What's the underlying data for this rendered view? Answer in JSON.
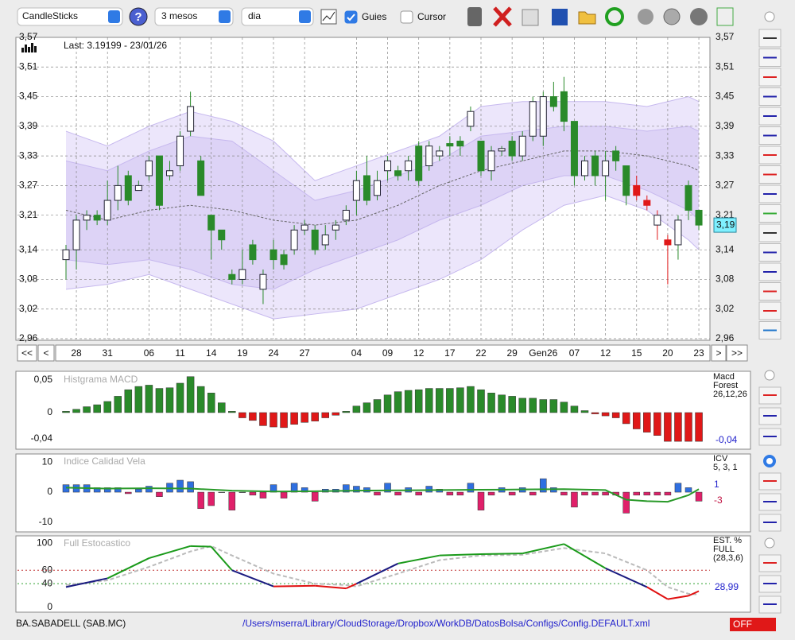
{
  "toolbar": {
    "chart_type": "CandleSticks",
    "help": "?",
    "period": "3 mesos",
    "interval": "dia",
    "guides_label": "Guies",
    "guides_checked": true,
    "cursor_label": "Cursor",
    "cursor_checked": false
  },
  "main_chart": {
    "type": "candlestick",
    "last_text": "Last: 3.19199 - 23/01/26",
    "last_label": "3,19",
    "ylim": [
      2.96,
      3.57
    ],
    "yticks": [
      {
        "value": 2.96,
        "label": "2,96"
      },
      {
        "value": 3.02,
        "label": "3,02"
      },
      {
        "value": 3.08,
        "label": "3,08"
      },
      {
        "value": 3.14,
        "label": "3,14"
      },
      {
        "value": 3.21,
        "label": "3,21"
      },
      {
        "value": 3.27,
        "label": "3,27"
      },
      {
        "value": 3.33,
        "label": "3,33"
      },
      {
        "value": 3.39,
        "label": "3,39"
      },
      {
        "value": 3.45,
        "label": "3,45"
      },
      {
        "value": 3.51,
        "label": "3,51"
      },
      {
        "value": 3.57,
        "label": "3,57"
      }
    ],
    "x_labels": [
      "28",
      "31",
      "06",
      "11",
      "14",
      "19",
      "24",
      "27",
      "04",
      "09",
      "12",
      "17",
      "22",
      "29",
      "Gen26",
      "07",
      "12",
      "15",
      "20",
      "23"
    ],
    "x_label_index": [
      1,
      4,
      8,
      11,
      14,
      17,
      20,
      23,
      28,
      31,
      34,
      37,
      40,
      43,
      46,
      49,
      52,
      55,
      58,
      61
    ],
    "nav": [
      "<<",
      "<",
      ">",
      ">>"
    ],
    "grid": true,
    "up_fill": "#ffffff",
    "candles": [
      [
        3.12,
        3.15,
        3.08,
        3.14
      ],
      [
        3.14,
        3.21,
        3.1,
        3.2
      ],
      [
        3.2,
        3.22,
        3.18,
        3.21
      ],
      [
        3.21,
        3.22,
        3.19,
        3.2
      ],
      [
        3.2,
        3.28,
        3.19,
        3.24
      ],
      [
        3.24,
        3.31,
        3.22,
        3.27
      ],
      [
        3.29,
        3.3,
        3.23,
        3.24
      ],
      [
        3.26,
        3.28,
        3.26,
        3.27
      ],
      [
        3.29,
        3.33,
        3.28,
        3.32
      ],
      [
        3.33,
        3.33,
        3.22,
        3.23
      ],
      [
        3.29,
        3.32,
        3.28,
        3.3
      ],
      [
        3.31,
        3.38,
        3.3,
        3.37
      ],
      [
        3.38,
        3.46,
        3.37,
        3.43
      ],
      [
        3.32,
        3.33,
        3.25,
        3.25
      ],
      [
        3.21,
        3.21,
        3.12,
        3.18
      ],
      [
        3.18,
        3.18,
        3.14,
        3.16
      ],
      [
        3.09,
        3.1,
        3.07,
        3.08
      ],
      [
        3.08,
        3.14,
        3.07,
        3.1
      ],
      [
        3.15,
        3.16,
        3.11,
        3.12
      ],
      [
        3.06,
        3.1,
        3.03,
        3.09
      ],
      [
        3.14,
        3.16,
        3.1,
        3.12
      ],
      [
        3.13,
        3.14,
        3.1,
        3.11
      ],
      [
        3.14,
        3.19,
        3.13,
        3.18
      ],
      [
        3.18,
        3.2,
        3.17,
        3.19
      ],
      [
        3.18,
        3.19,
        3.13,
        3.14
      ],
      [
        3.15,
        3.19,
        3.14,
        3.17
      ],
      [
        3.18,
        3.2,
        3.16,
        3.19
      ],
      [
        3.2,
        3.23,
        3.19,
        3.22
      ],
      [
        3.24,
        3.3,
        3.21,
        3.28
      ],
      [
        3.29,
        3.33,
        3.23,
        3.24
      ],
      [
        3.25,
        3.3,
        3.24,
        3.28
      ],
      [
        3.3,
        3.33,
        3.28,
        3.32
      ],
      [
        3.3,
        3.31,
        3.28,
        3.29
      ],
      [
        3.3,
        3.33,
        3.28,
        3.32
      ],
      [
        3.35,
        3.36,
        3.27,
        3.28
      ],
      [
        3.31,
        3.36,
        3.3,
        3.35
      ],
      [
        3.33,
        3.35,
        3.32,
        3.34
      ],
      [
        3.355,
        3.37,
        3.33,
        3.35
      ],
      [
        3.36,
        3.37,
        3.33,
        3.35
      ],
      [
        3.39,
        3.43,
        3.38,
        3.42
      ],
      [
        3.36,
        3.36,
        3.29,
        3.3
      ],
      [
        3.3,
        3.35,
        3.28,
        3.34
      ],
      [
        3.34,
        3.35,
        3.33,
        3.345
      ],
      [
        3.36,
        3.37,
        3.32,
        3.33
      ],
      [
        3.33,
        3.38,
        3.32,
        3.37
      ],
      [
        3.37,
        3.45,
        3.36,
        3.44
      ],
      [
        3.37,
        3.46,
        3.35,
        3.45
      ],
      [
        3.45,
        3.48,
        3.42,
        3.43
      ],
      [
        3.46,
        3.49,
        3.38,
        3.4
      ],
      [
        3.4,
        3.4,
        3.27,
        3.29
      ],
      [
        3.29,
        3.33,
        3.28,
        3.32
      ],
      [
        3.33,
        3.34,
        3.27,
        3.29
      ],
      [
        3.29,
        3.34,
        3.24,
        3.32
      ],
      [
        3.34,
        3.35,
        3.3,
        3.32
      ],
      [
        3.31,
        3.31,
        3.23,
        3.25
      ],
      [
        3.27,
        3.29,
        3.24,
        3.25
      ],
      [
        3.24,
        3.25,
        3.22,
        3.23
      ],
      [
        3.19,
        3.22,
        3.16,
        3.21
      ],
      [
        3.16,
        3.17,
        3.07,
        3.15
      ],
      [
        3.15,
        3.21,
        3.12,
        3.2
      ],
      [
        3.27,
        3.28,
        3.2,
        3.22
      ],
      [
        3.22,
        3.22,
        3.18,
        3.19
      ]
    ],
    "candle_colors": [
      "#2a8a2a",
      "#2a8a2a",
      "#2a8a2a",
      "#2a8a2a",
      "#2a8a2a",
      "#2a8a2a",
      "#2a8a2a",
      "#2a8a2a",
      "#2a8a2a",
      "#2a8a2a",
      "#2a8a2a",
      "#2a8a2a",
      "#2a8a2a",
      "#2a8a2a",
      "#2a8a2a",
      "#2a8a2a",
      "#2a8a2a",
      "#2a8a2a",
      "#2a8a2a",
      "#2a8a2a",
      "#2a8a2a",
      "#2a8a2a",
      "#2a8a2a",
      "#2a8a2a",
      "#2a8a2a",
      "#2a8a2a",
      "#2a8a2a",
      "#2a8a2a",
      "#2a8a2a",
      "#2a8a2a",
      "#2a8a2a",
      "#2a8a2a",
      "#2a8a2a",
      "#2a8a2a",
      "#2a8a2a",
      "#2a8a2a",
      "#2a8a2a",
      "#2a8a2a",
      "#2a8a2a",
      "#2a8a2a",
      "#2a8a2a",
      "#2a8a2a",
      "#2a8a2a",
      "#2a8a2a",
      "#2a8a2a",
      "#2a8a2a",
      "#2a8a2a",
      "#2a8a2a",
      "#2a8a2a",
      "#2a8a2a",
      "#2a8a2a",
      "#2a8a2a",
      "#2a8a2a",
      "#2a8a2a",
      "#2a8a2a",
      "#e01818",
      "#e01818",
      "#e01818",
      "#e01818",
      "#2a8a2a",
      "#2a8a2a",
      "#2a8a2a"
    ],
    "bands": {
      "x": [
        0,
        4,
        8,
        12,
        16,
        20,
        24,
        28,
        32,
        36,
        40,
        44,
        48,
        52,
        56,
        60,
        61
      ],
      "upper": [
        3.38,
        3.35,
        3.39,
        3.42,
        3.4,
        3.36,
        3.28,
        3.31,
        3.34,
        3.37,
        3.43,
        3.44,
        3.44,
        3.44,
        3.43,
        3.45,
        3.44
      ],
      "inner_upper": [
        3.32,
        3.3,
        3.34,
        3.37,
        3.36,
        3.3,
        3.24,
        3.26,
        3.29,
        3.32,
        3.37,
        3.38,
        3.39,
        3.39,
        3.38,
        3.39,
        3.38
      ],
      "mid": [
        3.22,
        3.2,
        3.22,
        3.23,
        3.22,
        3.2,
        3.19,
        3.2,
        3.23,
        3.27,
        3.3,
        3.32,
        3.34,
        3.34,
        3.33,
        3.31,
        3.3
      ],
      "inner_lower": [
        3.12,
        3.11,
        3.12,
        3.1,
        3.07,
        3.06,
        3.1,
        3.13,
        3.16,
        3.2,
        3.23,
        3.27,
        3.29,
        3.29,
        3.26,
        3.22,
        3.2
      ],
      "lower": [
        3.06,
        3.07,
        3.09,
        3.06,
        3.03,
        3.0,
        3.01,
        3.02,
        3.05,
        3.08,
        3.12,
        3.18,
        3.23,
        3.25,
        3.22,
        3.16,
        3.14
      ]
    }
  },
  "macd": {
    "type": "bar",
    "title": "Histgrama MACD",
    "labels": [
      "Macd",
      "Forest",
      "26,12,26"
    ],
    "last_label": "-0,04",
    "ylim": [
      -0.056,
      0.062
    ],
    "yticks": [
      {
        "value": 0.05,
        "label": "0,05"
      },
      0,
      {
        "value": -0.04,
        "label": "-0,04"
      }
    ],
    "colors": {
      "positive": "#2a8a2a",
      "negative": "#e01818"
    },
    "values": [
      0.002,
      0.005,
      0.009,
      0.012,
      0.017,
      0.025,
      0.035,
      0.04,
      0.042,
      0.037,
      0.038,
      0.045,
      0.055,
      0.04,
      0.03,
      0.015,
      0.002,
      -0.008,
      -0.012,
      -0.02,
      -0.022,
      -0.023,
      -0.018,
      -0.015,
      -0.013,
      -0.008,
      -0.004,
      0.002,
      0.01,
      0.015,
      0.02,
      0.027,
      0.032,
      0.034,
      0.035,
      0.037,
      0.037,
      0.037,
      0.038,
      0.04,
      0.035,
      0.03,
      0.027,
      0.025,
      0.022,
      0.022,
      0.02,
      0.02,
      0.016,
      0.01,
      0.003,
      -0.002,
      -0.005,
      -0.008,
      -0.017,
      -0.025,
      -0.03,
      -0.035,
      -0.044,
      -0.044,
      -0.044,
      -0.044
    ]
  },
  "icv": {
    "type": "bar",
    "title": "Indice Calidad Vela",
    "labels": [
      "ICV",
      "5, 3, 1"
    ],
    "last_labels": [
      "1",
      "-3"
    ],
    "ylim": [
      -13,
      12.5
    ],
    "yticks": [
      10,
      0,
      -10
    ],
    "colors": {
      "positive": "#2f6fe0",
      "negative": "#e0206a"
    },
    "values": [
      2.5,
      2.5,
      2.5,
      1.5,
      1.5,
      1.5,
      -0.5,
      1,
      2,
      -1.5,
      3,
      4,
      3.5,
      -5.5,
      -4.5,
      0,
      -6,
      0,
      -1,
      -2,
      2.5,
      -2,
      3,
      1.5,
      -3,
      1,
      1,
      2.5,
      2,
      1.5,
      -1,
      3,
      -1,
      1.5,
      -1,
      2,
      1,
      -1,
      -1,
      3,
      -6,
      -1,
      1.5,
      -1,
      1.5,
      -1,
      4.5,
      1.5,
      -1,
      -5,
      -1,
      -1,
      -1,
      -1,
      -7,
      -1,
      -1,
      -1,
      -1,
      3,
      1.5,
      -3
    ],
    "signal": {
      "color": "#2a9a2a",
      "x": [
        0,
        4,
        8,
        12,
        16,
        20,
        24,
        28,
        32,
        36,
        40,
        44,
        48,
        52,
        54,
        56,
        58,
        60,
        61
      ],
      "values": [
        1.5,
        1.2,
        1.3,
        1.2,
        0.5,
        0.2,
        0.3,
        0.5,
        0.6,
        0.7,
        0.8,
        0.9,
        1.0,
        0.7,
        -2.5,
        -3,
        -3.2,
        -1,
        1
      ]
    }
  },
  "stochastic": {
    "type": "line",
    "title": "Full Estocastico",
    "labels": [
      "EST. %",
      "FULL",
      "(28,3,6)"
    ],
    "last_label": "28,99",
    "ylim": [
      0,
      110
    ],
    "yticks": [
      100,
      60,
      40,
      0
    ],
    "levels": [
      60,
      40
    ],
    "level_colors": [
      "#c03030",
      "#30a030"
    ],
    "k_colors": {
      "above": "#1a9a1a",
      "middle": "#1a1a80",
      "below": "#e01010"
    },
    "k": {
      "x": [
        0,
        4,
        8,
        12,
        14,
        16,
        20,
        24,
        27,
        28,
        32,
        36,
        40,
        44,
        48,
        52,
        56,
        58,
        60,
        61
      ],
      "values": [
        35,
        48,
        78,
        96,
        95,
        60,
        36,
        37,
        33,
        40,
        70,
        82,
        84,
        85,
        99,
        63,
        35,
        17,
        22,
        28.99
      ]
    },
    "d": {
      "color": "#bbbbbb",
      "x": [
        0,
        4,
        8,
        12,
        14,
        16,
        20,
        24,
        27,
        28,
        32,
        36,
        40,
        44,
        48,
        52,
        56,
        58,
        60,
        61
      ],
      "values": [
        38,
        45,
        65,
        88,
        96,
        82,
        55,
        40,
        38,
        36,
        55,
        75,
        82,
        83,
        93,
        85,
        60,
        35,
        25,
        24
      ]
    }
  },
  "status": {
    "symbol": "BA.SABADELL (SAB.MC)",
    "path": "/Users/mserra/Library/CloudStorage/Dropbox/WorkDB/DatosBolsa/Configs/Config.DEFAULT.xml",
    "state": "OFF"
  }
}
